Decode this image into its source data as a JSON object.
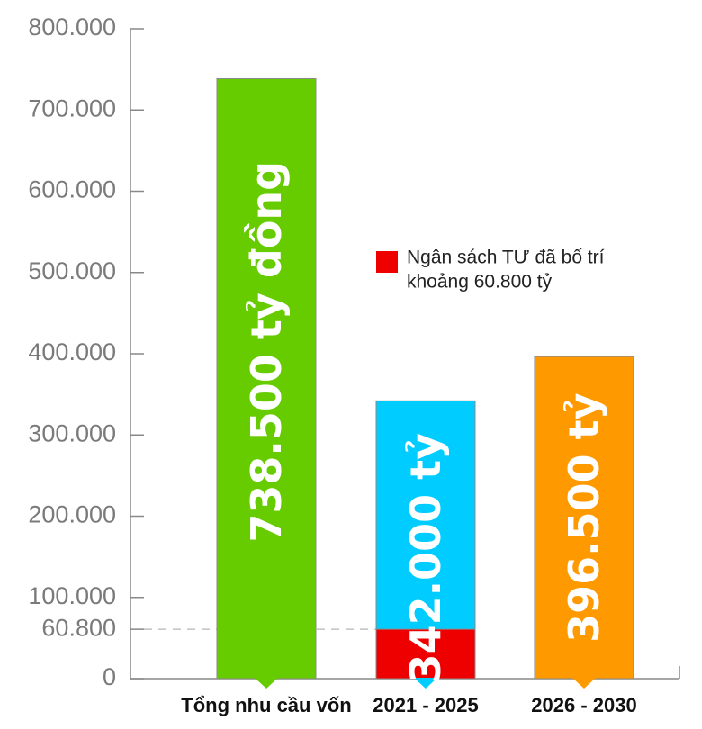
{
  "chart_data": {
    "type": "bar",
    "categories": [
      "Tổng nhu cầu vốn",
      "2021 - 2025",
      "2026 - 2030"
    ],
    "values": [
      738500,
      342000,
      396500
    ],
    "bar_labels": [
      "738.500 tỷ đồng",
      "342.000 tỷ",
      "396.500 tỷ"
    ],
    "bar_colors": [
      "#66cc00",
      "#00ccff",
      "#ff9900"
    ],
    "sub_segment": {
      "category": "2021 - 2025",
      "value": 60800,
      "color": "#ee0000",
      "legend_label_line1": "Ngân sách TƯ đã bố trí",
      "legend_label_line2": "khoảng 60.800 tỷ"
    },
    "reference_line": {
      "value": 60800,
      "label": "60.800",
      "style": "dashed"
    },
    "yticks": [
      0,
      100000,
      200000,
      300000,
      400000,
      500000,
      600000,
      700000,
      800000
    ],
    "ytick_labels": [
      "0",
      "100.000",
      "200.000",
      "300.000",
      "400.000",
      "500.000",
      "600.000",
      "700.000",
      "800.000"
    ],
    "ylim": [
      0,
      800000
    ],
    "title": "",
    "xlabel": "",
    "ylabel": "",
    "grid": false,
    "legend_position": "right"
  }
}
